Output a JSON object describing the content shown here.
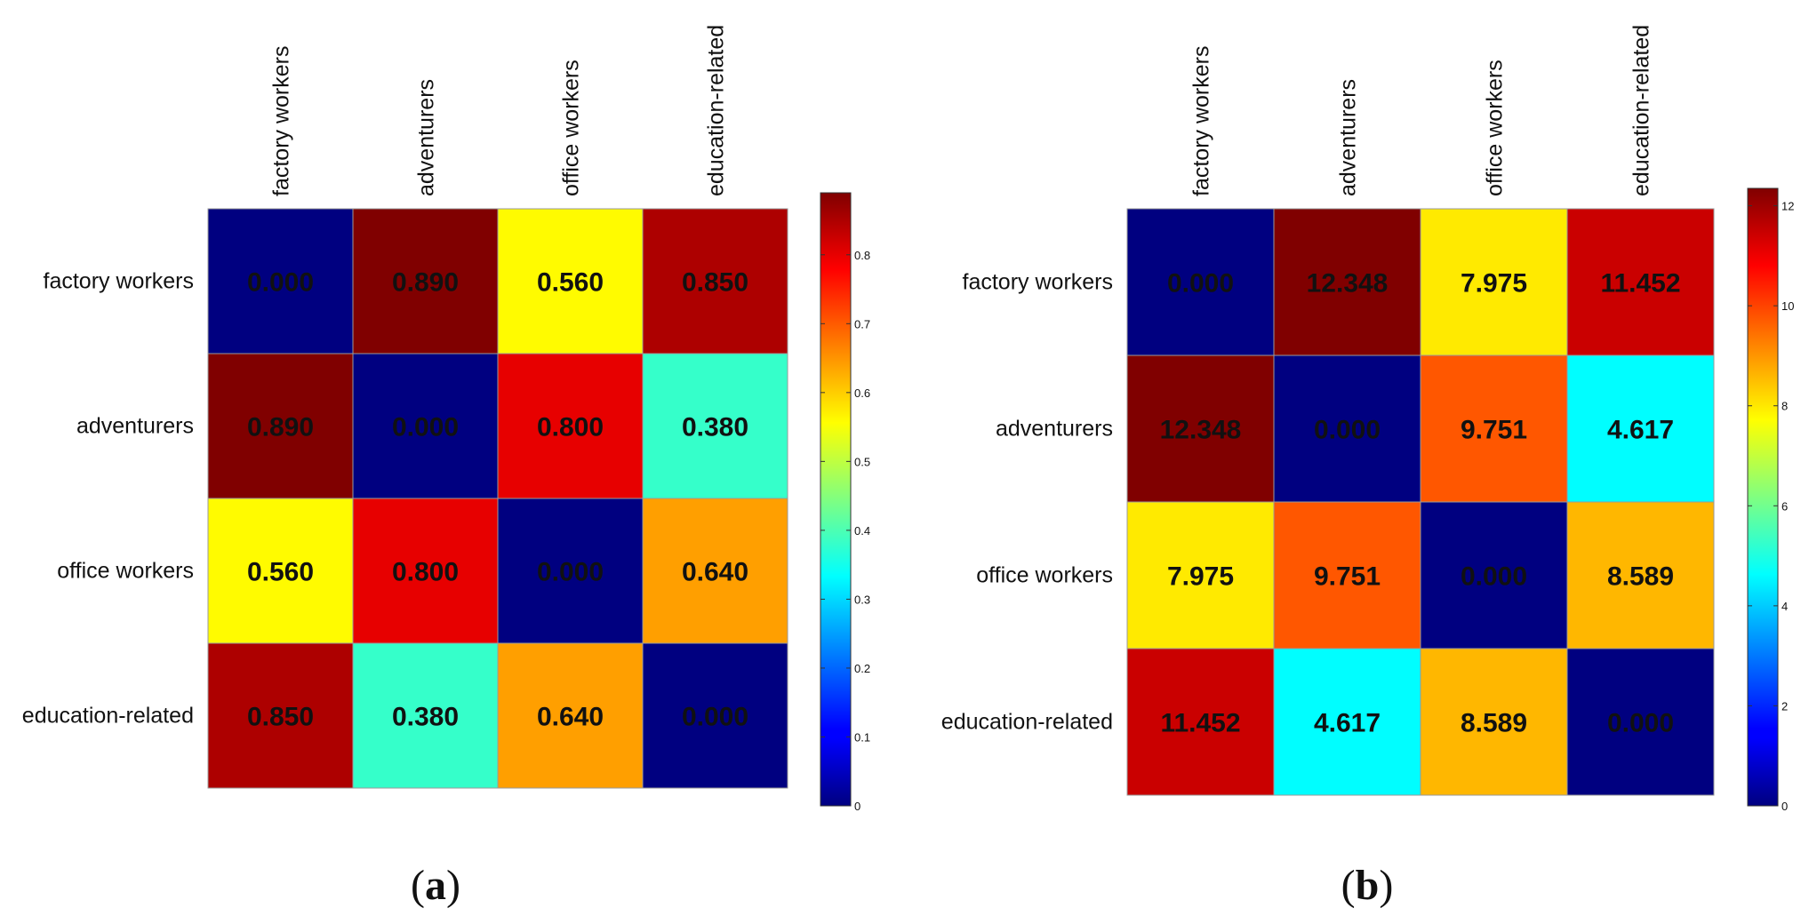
{
  "chart_data": [
    {
      "type": "heatmap",
      "panel_label": "a",
      "panel_label_prefix": "(",
      "panel_label_suffix": ")",
      "rows": [
        "factory workers",
        "adventurers",
        "office workers",
        "education-related"
      ],
      "columns": [
        "factory workers",
        "adventurers",
        "office workers",
        "education-related"
      ],
      "values": [
        [
          0.0,
          0.89,
          0.56,
          0.85
        ],
        [
          0.89,
          0.0,
          0.8,
          0.38
        ],
        [
          0.56,
          0.8,
          0.0,
          0.64
        ],
        [
          0.85,
          0.38,
          0.64,
          0.0
        ]
      ],
      "value_labels": [
        [
          "0.000",
          "0.890",
          "0.560",
          "0.850"
        ],
        [
          "0.890",
          "0.000",
          "0.800",
          "0.380"
        ],
        [
          "0.560",
          "0.800",
          "0.000",
          "0.640"
        ],
        [
          "0.850",
          "0.380",
          "0.640",
          "0.000"
        ]
      ],
      "colormap": "jet",
      "color_range": [
        0,
        0.89
      ],
      "colorbar_ticks": [
        0,
        0.1,
        0.2,
        0.3,
        0.4,
        0.5,
        0.6,
        0.7,
        0.8
      ],
      "colorbar_tick_labels": [
        "0",
        "0.1",
        "0.2",
        "0.3",
        "0.4",
        "0.5",
        "0.6",
        "0.7",
        "0.8"
      ]
    },
    {
      "type": "heatmap",
      "panel_label": "b",
      "panel_label_prefix": "(",
      "panel_label_suffix": ")",
      "rows": [
        "factory workers",
        "adventurers",
        "office workers",
        "education-related"
      ],
      "columns": [
        "factory workers",
        "adventurers",
        "office workers",
        "education-related"
      ],
      "values": [
        [
          0.0,
          12.348,
          7.975,
          11.452
        ],
        [
          12.348,
          0.0,
          9.751,
          4.617
        ],
        [
          7.975,
          9.751,
          0.0,
          8.589
        ],
        [
          11.452,
          4.617,
          8.589,
          0.0
        ]
      ],
      "value_labels": [
        [
          "0.000",
          "12.348",
          "7.975",
          "11.452"
        ],
        [
          "12.348",
          "0.000",
          "9.751",
          "4.617"
        ],
        [
          "7.975",
          "9.751",
          "0.000",
          "8.589"
        ],
        [
          "11.452",
          "4.617",
          "8.589",
          "0.000"
        ]
      ],
      "colormap": "jet",
      "color_range": [
        0,
        12.348
      ],
      "colorbar_ticks": [
        0,
        2,
        4,
        6,
        8,
        10,
        12
      ],
      "colorbar_tick_labels": [
        "0",
        "2",
        "4",
        "6",
        "8",
        "10",
        "12"
      ]
    }
  ]
}
